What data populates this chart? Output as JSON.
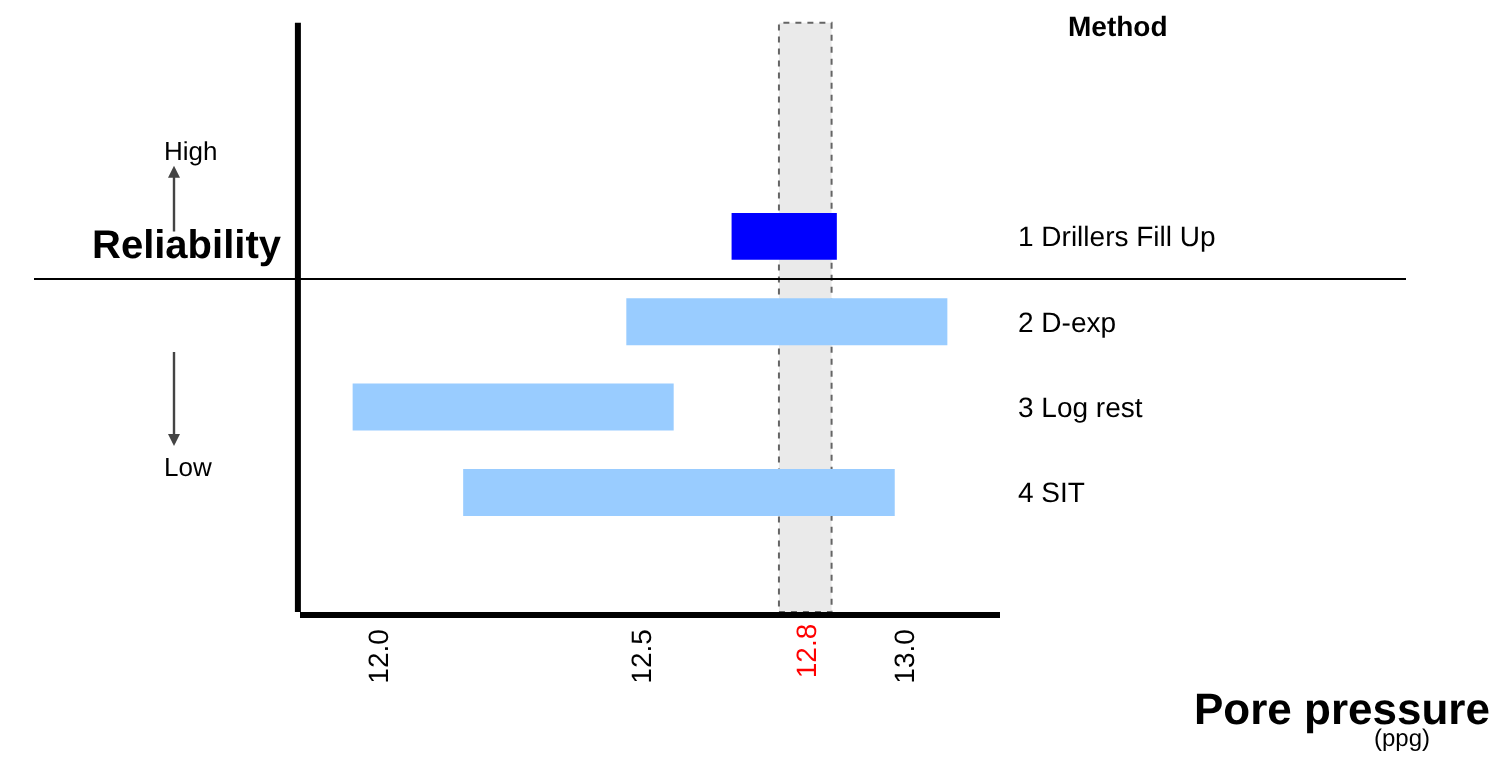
{
  "chart_data": {
    "type": "bar",
    "orientation": "horizontal",
    "categories": [
      "1 Drillers Fill Up",
      "2 D-exp",
      "3 Log rest",
      "4 SIT"
    ],
    "base": [
      12.67,
      12.47,
      11.95,
      12.16
    ],
    "values": [
      0.2,
      0.61,
      0.61,
      0.82
    ],
    "colors": [
      "#0000ff",
      "#99ccff",
      "#99ccff",
      "#99ccff"
    ],
    "xlabel": "Pore pressure",
    "ylabel": "Reliability",
    "legend_title": "Method",
    "annotations": [
      "(ppg)",
      "High",
      "Low"
    ],
    "xlim": [
      11.85,
      13.18
    ],
    "xticks": [
      {
        "value": 12,
        "label": "12.0"
      },
      {
        "value": 12.5,
        "label": "12.5"
      },
      {
        "value": 13,
        "label": "13.0"
      }
    ],
    "bands": [
      {
        "axis": "x",
        "from": 12.76,
        "to": 12.86,
        "label": "12.8"
      }
    ],
    "grid": false
  }
}
